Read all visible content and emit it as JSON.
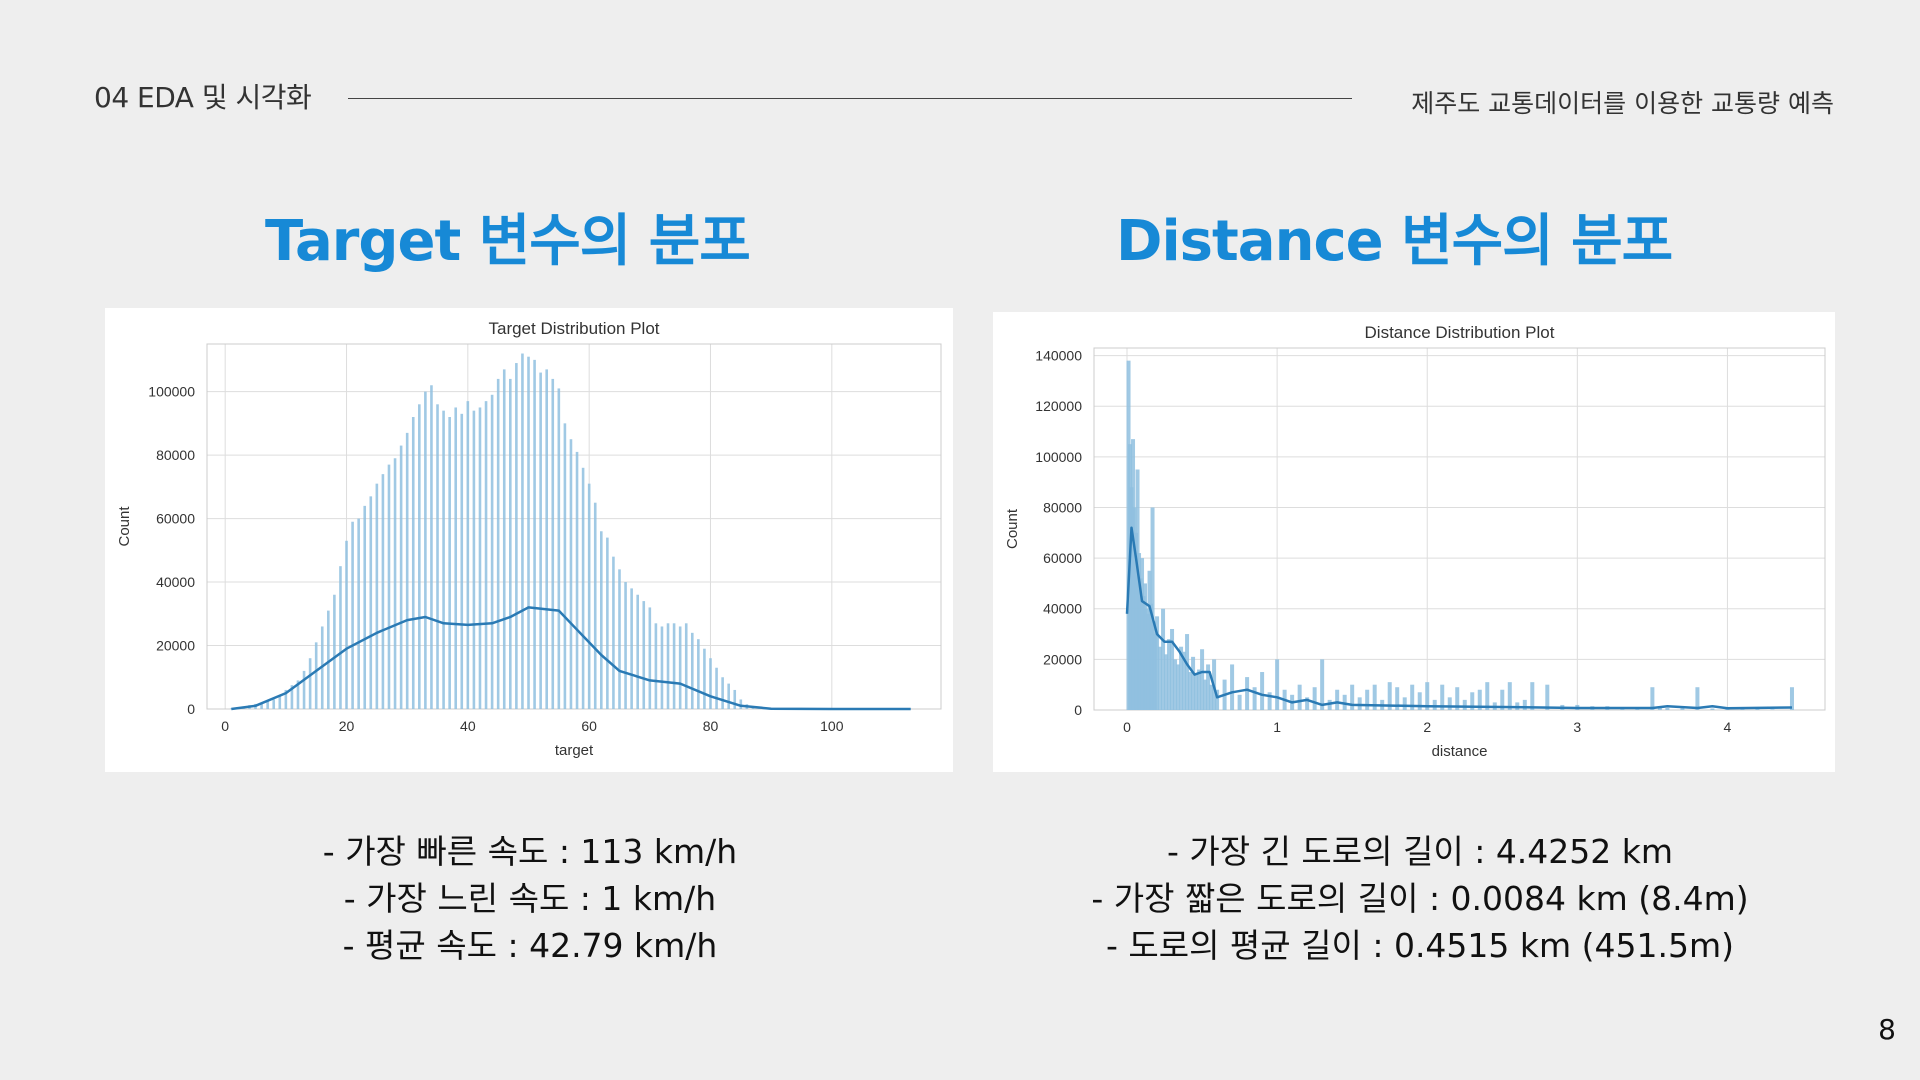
{
  "header": {
    "section": "04 EDA 및 시각화",
    "subtitle": "제주도 교통데이터를 이용한 교통량 예측"
  },
  "left": {
    "heading": "Target 변수의 분포",
    "stats": [
      "- 가장 빠른 속도 : 113 km/h",
      "- 가장 느린 속도 :  1 km/h",
      "- 평균 속도 : 42.79 km/h"
    ]
  },
  "right": {
    "heading": "Distance 변수의 분포",
    "stats": [
      "- 가장 긴 도로의 길이 : 4.4252 km",
      "- 가장 짧은 도로의 길이 : 0.0084 km (8.4m)",
      "- 도로의 평균 길이 : 0.4515 km (451.5m)"
    ]
  },
  "page_number": "8",
  "colors": {
    "heading": "#1789d6",
    "bar": "#8fbfdf",
    "kde": "#2a7ab4"
  },
  "chart_data": [
    {
      "type": "bar",
      "subtype": "histogram-with-kde",
      "title": "Target Distribution Plot",
      "xlabel": "target",
      "ylabel": "Count",
      "xlim": [
        -3,
        118
      ],
      "ylim": [
        0,
        115000
      ],
      "xticks": [
        0,
        20,
        40,
        60,
        80,
        100
      ],
      "yticks": [
        0,
        20000,
        40000,
        60000,
        80000,
        100000
      ],
      "grid": true,
      "bars": {
        "x": [
          1,
          2,
          3,
          4,
          5,
          6,
          7,
          8,
          9,
          10,
          11,
          12,
          13,
          14,
          15,
          16,
          17,
          18,
          19,
          20,
          21,
          22,
          23,
          24,
          25,
          26,
          27,
          28,
          29,
          30,
          31,
          32,
          33,
          34,
          35,
          36,
          37,
          38,
          39,
          40,
          41,
          42,
          43,
          44,
          45,
          46,
          47,
          48,
          49,
          50,
          51,
          52,
          53,
          54,
          55,
          56,
          57,
          58,
          59,
          60,
          61,
          62,
          63,
          64,
          65,
          66,
          67,
          68,
          69,
          70,
          71,
          72,
          73,
          74,
          75,
          76,
          77,
          78,
          79,
          80,
          81,
          82,
          83,
          84,
          85,
          86,
          87,
          88,
          89,
          90,
          91,
          92,
          93,
          94,
          95,
          96,
          97,
          98,
          99,
          100,
          101,
          102,
          103,
          104,
          105,
          106,
          107,
          108,
          109,
          110,
          111,
          112,
          113
        ],
        "y": [
          200,
          500,
          800,
          1200,
          1600,
          2000,
          2500,
          3000,
          4000,
          6000,
          7500,
          9000,
          12000,
          16000,
          21000,
          26000,
          31000,
          36000,
          45000,
          53000,
          59000,
          60000,
          64000,
          67000,
          71000,
          74000,
          77000,
          79000,
          83000,
          87000,
          92000,
          96000,
          100000,
          102000,
          96000,
          94000,
          92000,
          95000,
          93000,
          97000,
          94000,
          95000,
          97000,
          99000,
          104000,
          107000,
          104000,
          109000,
          112000,
          111000,
          110000,
          106000,
          107000,
          104000,
          101000,
          90000,
          85000,
          81000,
          76000,
          71000,
          65000,
          56000,
          54000,
          48000,
          44000,
          40000,
          38000,
          36000,
          34000,
          32000,
          27000,
          26000,
          27000,
          27000,
          26000,
          27000,
          24000,
          22000,
          19000,
          16000,
          13000,
          10000,
          8000,
          6000,
          3000,
          1500,
          600,
          300,
          200,
          150,
          120,
          100,
          90,
          80,
          70,
          60,
          55,
          50,
          45,
          40,
          35,
          30,
          28,
          26,
          24,
          22,
          20,
          18,
          16,
          14,
          12,
          10,
          8
        ]
      },
      "kde": {
        "x": [
          1,
          5,
          10,
          15,
          20,
          25,
          30,
          33,
          36,
          40,
          44,
          47,
          50,
          55,
          58,
          62,
          65,
          70,
          75,
          80,
          85,
          90,
          100,
          113
        ],
        "y": [
          0,
          1000,
          5000,
          12000,
          19000,
          24000,
          28000,
          29000,
          27000,
          26500,
          27000,
          29000,
          32000,
          31000,
          25000,
          17000,
          12000,
          9000,
          8000,
          4000,
          1000,
          100,
          0,
          0
        ]
      }
    },
    {
      "type": "bar",
      "subtype": "histogram-with-kde",
      "title": "Distance Distribution Plot",
      "xlabel": "distance",
      "ylabel": "Count",
      "xlim": [
        -0.22,
        4.65
      ],
      "ylim": [
        0,
        143000
      ],
      "xticks": [
        0,
        1,
        2,
        3,
        4
      ],
      "yticks": [
        0,
        20000,
        40000,
        60000,
        80000,
        100000,
        120000,
        140000
      ],
      "grid": true,
      "bars": {
        "x": [
          0.01,
          0.02,
          0.03,
          0.04,
          0.05,
          0.06,
          0.07,
          0.08,
          0.09,
          0.1,
          0.11,
          0.12,
          0.13,
          0.14,
          0.15,
          0.16,
          0.17,
          0.18,
          0.19,
          0.2,
          0.22,
          0.24,
          0.26,
          0.28,
          0.3,
          0.32,
          0.34,
          0.36,
          0.38,
          0.4,
          0.42,
          0.44,
          0.46,
          0.48,
          0.5,
          0.52,
          0.54,
          0.56,
          0.58,
          0.6,
          0.65,
          0.7,
          0.75,
          0.8,
          0.85,
          0.9,
          0.95,
          1.0,
          1.05,
          1.1,
          1.15,
          1.2,
          1.25,
          1.3,
          1.35,
          1.4,
          1.45,
          1.5,
          1.55,
          1.6,
          1.65,
          1.7,
          1.75,
          1.8,
          1.85,
          1.9,
          1.95,
          2.0,
          2.05,
          2.1,
          2.15,
          2.2,
          2.25,
          2.3,
          2.35,
          2.4,
          2.45,
          2.5,
          2.55,
          2.6,
          2.65,
          2.7,
          2.8,
          2.9,
          3.0,
          3.1,
          3.2,
          3.3,
          3.4,
          3.5,
          3.55,
          3.6,
          3.7,
          3.8,
          3.9,
          4.0,
          4.1,
          4.2,
          4.3,
          4.43
        ],
        "y": [
          138000,
          105000,
          88000,
          107000,
          80000,
          70000,
          95000,
          62000,
          52000,
          60000,
          45000,
          50000,
          40000,
          38000,
          55000,
          42000,
          80000,
          35000,
          30000,
          37000,
          25000,
          40000,
          22000,
          28000,
          32000,
          20000,
          18000,
          25000,
          23000,
          30000,
          15000,
          21000,
          14000,
          16000,
          24000,
          12000,
          18000,
          10000,
          20000,
          8000,
          12000,
          18000,
          6000,
          13000,
          9000,
          15000,
          7000,
          20000,
          8000,
          6000,
          10000,
          5000,
          9000,
          20000,
          4000,
          8000,
          6000,
          10000,
          5000,
          8000,
          10000,
          4000,
          11000,
          9000,
          5000,
          10000,
          7000,
          11000,
          4000,
          10000,
          5000,
          9000,
          4000,
          7000,
          8000,
          11000,
          3000,
          8000,
          11000,
          3000,
          4000,
          11000,
          10000,
          2000,
          2000,
          1500,
          1500,
          1000,
          1000,
          9000,
          1000,
          800,
          700,
          9000,
          600,
          500,
          400,
          400,
          300,
          9000
        ]
      },
      "kde": {
        "x": [
          0,
          0.03,
          0.06,
          0.1,
          0.15,
          0.2,
          0.25,
          0.3,
          0.35,
          0.4,
          0.45,
          0.5,
          0.55,
          0.6,
          0.7,
          0.8,
          0.9,
          1.0,
          1.1,
          1.2,
          1.3,
          1.4,
          1.5,
          2.0,
          2.5,
          3.0,
          3.5,
          3.6,
          3.8,
          3.9,
          4.0,
          4.43
        ],
        "y": [
          38000,
          72000,
          60000,
          43000,
          41000,
          30000,
          27000,
          27000,
          23000,
          18000,
          14000,
          15000,
          15000,
          5000,
          7000,
          8000,
          6000,
          5000,
          3000,
          4000,
          2000,
          3000,
          2000,
          1500,
          1200,
          800,
          800,
          1500,
          800,
          1500,
          700,
          1000
        ]
      }
    }
  ]
}
